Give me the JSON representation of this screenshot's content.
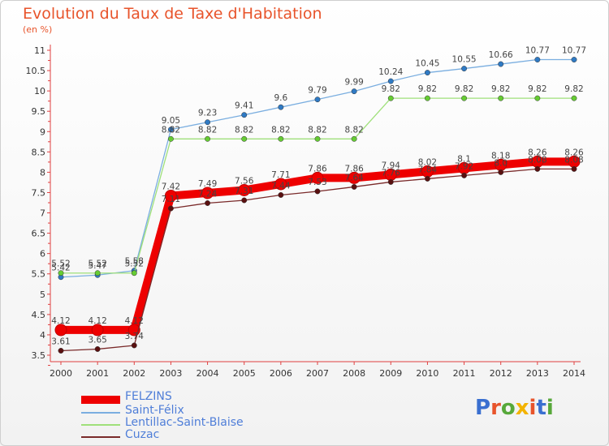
{
  "header": {
    "title": "Evolution du Taux de Taxe d'Habitation",
    "unit": "(en %)"
  },
  "logo": {
    "text": "Proxiti",
    "colors": [
      "#3a6fd0",
      "#e8542b",
      "#57a83a",
      "#f3b300",
      "#e8542b",
      "#3a6fd0",
      "#57a83a"
    ]
  },
  "chart_data": {
    "type": "line",
    "x": [
      "2000",
      "2001",
      "2002",
      "2003",
      "2004",
      "2005",
      "2006",
      "2007",
      "2008",
      "2009",
      "2010",
      "2011",
      "2012",
      "2013",
      "2014"
    ],
    "ylim": [
      3.5,
      11
    ],
    "yticks": [
      "3.5",
      "4",
      "4.5",
      "5",
      "5.5",
      "6",
      "6.5",
      "7",
      "7.5",
      "8",
      "8.5",
      "9",
      "9.5",
      "10",
      "10.5",
      "11"
    ],
    "grid": false,
    "legend_position": "bottom-left",
    "series": [
      {
        "name": "FELZINS",
        "color": "#ee0000",
        "marker": "#ee0000",
        "values": [
          4.12,
          4.12,
          4.12,
          7.42,
          7.49,
          7.56,
          7.71,
          7.86,
          7.86,
          7.94,
          8.02,
          8.1,
          8.18,
          8.26,
          8.26
        ],
        "labels": [
          "4.12",
          "4.12",
          "4.12",
          "7.42",
          "7.49",
          "7.56",
          "7.71",
          "7.86",
          "7.86",
          "7.94",
          "8.02",
          "8.1",
          "8.18",
          "8.26",
          "8.26"
        ]
      },
      {
        "name": "Saint-Félix",
        "color": "#7aaee0",
        "marker": "#2f7ac4",
        "values": [
          5.42,
          5.47,
          5.58,
          9.05,
          9.23,
          9.41,
          9.6,
          9.79,
          9.99,
          10.24,
          10.45,
          10.55,
          10.66,
          10.77,
          10.77
        ],
        "labels": [
          "5.42",
          "5.47",
          "5.58",
          "9.05",
          "9.23",
          "9.41",
          "9.6",
          "9.79",
          "9.99",
          "10.24",
          "10.45",
          "10.55",
          "10.66",
          "10.77",
          "10.77"
        ]
      },
      {
        "name": "Lentillac-Saint-Blaise",
        "color": "#9fe07a",
        "marker": "#66cc33",
        "values": [
          5.52,
          5.52,
          5.52,
          8.82,
          8.82,
          8.82,
          8.82,
          8.82,
          8.82,
          9.82,
          9.82,
          9.82,
          9.82,
          9.82,
          9.82
        ],
        "labels": [
          "5.52",
          "5.52",
          "5.52",
          "8.82",
          "8.82",
          "8.82",
          "8.82",
          "8.82",
          "8.82",
          "9.82",
          "9.82",
          "9.82",
          "9.82",
          "9.82",
          "9.82"
        ]
      },
      {
        "name": "Cuzac",
        "color": "#7a2a2a",
        "marker": "#5a1010",
        "values": [
          3.61,
          3.65,
          3.74,
          7.11,
          7.24,
          7.31,
          7.44,
          7.53,
          7.64,
          7.76,
          7.84,
          7.92,
          8.0,
          8.08,
          8.08
        ],
        "labels": [
          "3.61",
          "3.65",
          "3.74",
          "7.11",
          "7.24",
          "7.31",
          "7.44",
          "7.53",
          "7.64",
          "7.76",
          "7.84",
          "7.92",
          "8.0",
          "8.08",
          "8.08"
        ]
      }
    ]
  }
}
